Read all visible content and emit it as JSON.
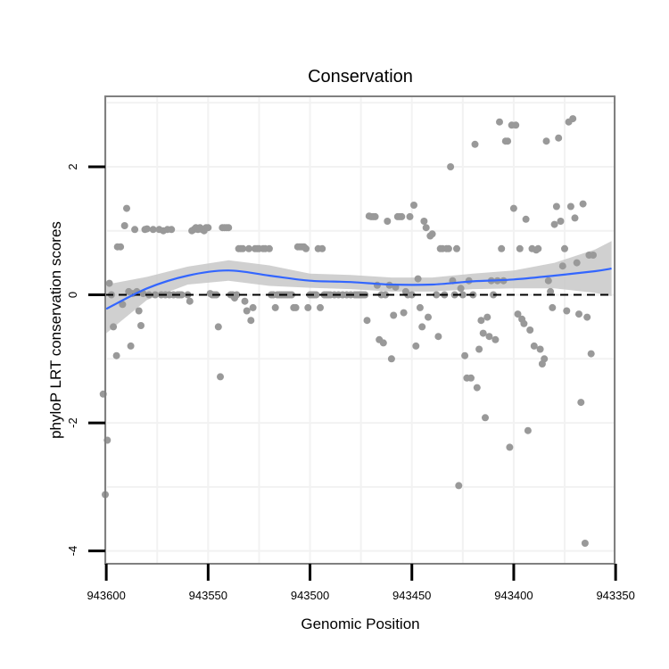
{
  "chart_data": {
    "type": "scatter",
    "title": "Conservation",
    "xlabel": "Genomic Position",
    "ylabel": "phyloP LRT conservation scores",
    "x_reversed": true,
    "xlim": [
      943600.5,
      943350.5
    ],
    "ylim": [
      -4.2,
      3.1
    ],
    "x_ticks": [
      943600,
      943550,
      943500,
      943450,
      943400,
      943350
    ],
    "y_ticks": [
      2,
      0,
      -2,
      -4
    ],
    "grid": true,
    "reference_line": {
      "y": 0,
      "style": "dashed",
      "color": "#000000"
    },
    "colors": {
      "points": "#999999",
      "smooth_line": "#3366ff",
      "confidence_band": "#c8c8c8",
      "panel_border": "#808080",
      "grid": "#f2f2f2"
    },
    "smooth": {
      "x": [
        943600,
        943580,
        943560,
        943540,
        943520,
        943500,
        943480,
        943460,
        943440,
        943420,
        943400,
        943380,
        943360,
        943352
      ],
      "y": [
        -0.22,
        0.1,
        0.3,
        0.38,
        0.3,
        0.22,
        0.2,
        0.16,
        0.16,
        0.21,
        0.24,
        0.3,
        0.37,
        0.41
      ],
      "lower": [
        -0.6,
        -0.08,
        0.16,
        0.22,
        0.14,
        0.11,
        0.09,
        0.05,
        0.05,
        0.09,
        0.1,
        0.1,
        0.03,
        -0.02
      ],
      "upper": [
        0.16,
        0.28,
        0.44,
        0.54,
        0.46,
        0.33,
        0.31,
        0.27,
        0.27,
        0.33,
        0.38,
        0.5,
        0.71,
        0.84
      ]
    },
    "points": [
      {
        "x": 943601.5,
        "y": -1.55
      },
      {
        "x": 943600.5,
        "y": -3.12
      },
      {
        "x": 943599.5,
        "y": -2.27
      },
      {
        "x": 943598.5,
        "y": 0.18
      },
      {
        "x": 943597.5,
        "y": 0.0
      },
      {
        "x": 943596.5,
        "y": -0.5
      },
      {
        "x": 943595.0,
        "y": -0.95
      },
      {
        "x": 943594.5,
        "y": 0.75
      },
      {
        "x": 943593.0,
        "y": 0.75
      },
      {
        "x": 943592.0,
        "y": -0.15
      },
      {
        "x": 943591.0,
        "y": 1.08
      },
      {
        "x": 943590.0,
        "y": 1.35
      },
      {
        "x": 943589.0,
        "y": 0.05
      },
      {
        "x": 943588.0,
        "y": -0.8
      },
      {
        "x": 943587.0,
        "y": 0.02
      },
      {
        "x": 943586.0,
        "y": 1.02
      },
      {
        "x": 943585.0,
        "y": 0.05
      },
      {
        "x": 943584.0,
        "y": -0.25
      },
      {
        "x": 943583.0,
        "y": -0.48
      },
      {
        "x": 943582.0,
        "y": 0.02
      },
      {
        "x": 943581.0,
        "y": 1.02
      },
      {
        "x": 943580.0,
        "y": 1.03
      },
      {
        "x": 943579.0,
        "y": 0.0
      },
      {
        "x": 943577.0,
        "y": 1.02
      },
      {
        "x": 943576.0,
        "y": 0.0
      },
      {
        "x": 943574.0,
        "y": 1.02
      },
      {
        "x": 943573.0,
        "y": 0.0
      },
      {
        "x": 943572.0,
        "y": 1.0
      },
      {
        "x": 943571.0,
        "y": 0.0
      },
      {
        "x": 943570.0,
        "y": 1.02
      },
      {
        "x": 943569.0,
        "y": 0.0
      },
      {
        "x": 943568.0,
        "y": 1.02
      },
      {
        "x": 943567.0,
        "y": 0.0
      },
      {
        "x": 943565.0,
        "y": 0.0
      },
      {
        "x": 943564.0,
        "y": 0.0
      },
      {
        "x": 943563.0,
        "y": 0.0
      },
      {
        "x": 943560.0,
        "y": 0.0
      },
      {
        "x": 943559.0,
        "y": -0.1
      },
      {
        "x": 943558.0,
        "y": 1.0
      },
      {
        "x": 943557.0,
        "y": 1.02
      },
      {
        "x": 943556.0,
        "y": 1.05
      },
      {
        "x": 943555.0,
        "y": 1.02
      },
      {
        "x": 943554.0,
        "y": 1.05
      },
      {
        "x": 943553.0,
        "y": 1.02
      },
      {
        "x": 943552.0,
        "y": 1.0
      },
      {
        "x": 943551.0,
        "y": 1.05
      },
      {
        "x": 943550.0,
        "y": 1.05
      },
      {
        "x": 943549.0,
        "y": 0.02
      },
      {
        "x": 943548.0,
        "y": 0.0
      },
      {
        "x": 943547.0,
        "y": 0.0
      },
      {
        "x": 943546.0,
        "y": 0.0
      },
      {
        "x": 943545.0,
        "y": -0.5
      },
      {
        "x": 943544.0,
        "y": -1.28
      },
      {
        "x": 943543.0,
        "y": 1.05
      },
      {
        "x": 943542.0,
        "y": 1.05
      },
      {
        "x": 943541.0,
        "y": 1.05
      },
      {
        "x": 943540.0,
        "y": 1.05
      },
      {
        "x": 943539.0,
        "y": 0.0
      },
      {
        "x": 943538.0,
        "y": 0.0
      },
      {
        "x": 943537.0,
        "y": -0.05
      },
      {
        "x": 943536.0,
        "y": 0.0
      },
      {
        "x": 943535.0,
        "y": 0.72
      },
      {
        "x": 943534.0,
        "y": 0.72
      },
      {
        "x": 943533.0,
        "y": 0.72
      },
      {
        "x": 943532.0,
        "y": -0.1
      },
      {
        "x": 943531.0,
        "y": -0.25
      },
      {
        "x": 943530.0,
        "y": 0.72
      },
      {
        "x": 943529.0,
        "y": -0.4
      },
      {
        "x": 943528.0,
        "y": -0.2
      },
      {
        "x": 943527.0,
        "y": 0.72
      },
      {
        "x": 943526.0,
        "y": 0.72
      },
      {
        "x": 943525.0,
        "y": 0.72
      },
      {
        "x": 943523.0,
        "y": 0.72
      },
      {
        "x": 943522.0,
        "y": 0.72
      },
      {
        "x": 943520.0,
        "y": 0.72
      },
      {
        "x": 943519.0,
        "y": 0.0
      },
      {
        "x": 943518.0,
        "y": 0.0
      },
      {
        "x": 943517.0,
        "y": -0.2
      },
      {
        "x": 943516.0,
        "y": 0.0
      },
      {
        "x": 943515.0,
        "y": 0.0
      },
      {
        "x": 943514.0,
        "y": 0.0
      },
      {
        "x": 943513.0,
        "y": 0.0
      },
      {
        "x": 943512.0,
        "y": 0.0
      },
      {
        "x": 943511.0,
        "y": 0.0
      },
      {
        "x": 943510.0,
        "y": 0.0
      },
      {
        "x": 943509.0,
        "y": 0.0
      },
      {
        "x": 943508.0,
        "y": -0.2
      },
      {
        "x": 943507.0,
        "y": -0.2
      },
      {
        "x": 943506.0,
        "y": 0.75
      },
      {
        "x": 943505.0,
        "y": 0.75
      },
      {
        "x": 943504.0,
        "y": 0.75
      },
      {
        "x": 943503.0,
        "y": 0.75
      },
      {
        "x": 943502.0,
        "y": 0.72
      },
      {
        "x": 943501.0,
        "y": -0.2
      },
      {
        "x": 943500.0,
        "y": 0.0
      },
      {
        "x": 943499.0,
        "y": 0.0
      },
      {
        "x": 943498.0,
        "y": 0.0
      },
      {
        "x": 943497.0,
        "y": 0.0
      },
      {
        "x": 943496.0,
        "y": 0.72
      },
      {
        "x": 943495.0,
        "y": -0.2
      },
      {
        "x": 943494.0,
        "y": 0.72
      },
      {
        "x": 943493.0,
        "y": 0.0
      },
      {
        "x": 943492.0,
        "y": 0.0
      },
      {
        "x": 943491.0,
        "y": 0.0
      },
      {
        "x": 943490.0,
        "y": 0.0
      },
      {
        "x": 943488.0,
        "y": 0.0
      },
      {
        "x": 943486.0,
        "y": 0.0
      },
      {
        "x": 943484.0,
        "y": 0.0
      },
      {
        "x": 943482.0,
        "y": 0.0
      },
      {
        "x": 943480.0,
        "y": 0.0
      },
      {
        "x": 943478.0,
        "y": 0.0
      },
      {
        "x": 943477.0,
        "y": 0.0
      },
      {
        "x": 943476.0,
        "y": 0.0
      },
      {
        "x": 943475.0,
        "y": 0.0
      },
      {
        "x": 943474.0,
        "y": 0.0
      },
      {
        "x": 943473.0,
        "y": 0.0
      },
      {
        "x": 943472.0,
        "y": -0.4
      },
      {
        "x": 943471.0,
        "y": 1.23
      },
      {
        "x": 943470.0,
        "y": 1.22
      },
      {
        "x": 943469.0,
        "y": 1.22
      },
      {
        "x": 943468.0,
        "y": 1.22
      },
      {
        "x": 943467.0,
        "y": 0.15
      },
      {
        "x": 943466.0,
        "y": -0.7
      },
      {
        "x": 943465.0,
        "y": 0.0
      },
      {
        "x": 943464.0,
        "y": -0.75
      },
      {
        "x": 943463.0,
        "y": 0.0
      },
      {
        "x": 943462.0,
        "y": 1.15
      },
      {
        "x": 943461.0,
        "y": 0.15
      },
      {
        "x": 943460.0,
        "y": -1.0
      },
      {
        "x": 943459.0,
        "y": -0.32
      },
      {
        "x": 943458.0,
        "y": 0.12
      },
      {
        "x": 943457.0,
        "y": 1.22
      },
      {
        "x": 943456.0,
        "y": 1.22
      },
      {
        "x": 943455.0,
        "y": 1.22
      },
      {
        "x": 943454.0,
        "y": -0.28
      },
      {
        "x": 943453.0,
        "y": 0.05
      },
      {
        "x": 943452.0,
        "y": 0.0
      },
      {
        "x": 943451.0,
        "y": 1.22
      },
      {
        "x": 943450.0,
        "y": 0.0
      },
      {
        "x": 943449.0,
        "y": 1.4
      },
      {
        "x": 943448.0,
        "y": -0.8
      },
      {
        "x": 943447.0,
        "y": 0.25
      },
      {
        "x": 943446.0,
        "y": -0.2
      },
      {
        "x": 943445.0,
        "y": -0.5
      },
      {
        "x": 943444.0,
        "y": 1.15
      },
      {
        "x": 943443.0,
        "y": 1.05
      },
      {
        "x": 943442.0,
        "y": -0.35
      },
      {
        "x": 943441.0,
        "y": 0.92
      },
      {
        "x": 943440.0,
        "y": 0.95
      },
      {
        "x": 943438.0,
        "y": 0.0
      },
      {
        "x": 943437.0,
        "y": -0.65
      },
      {
        "x": 943436.0,
        "y": 0.72
      },
      {
        "x": 943435.0,
        "y": 0.72
      },
      {
        "x": 943434.0,
        "y": 0.0
      },
      {
        "x": 943433.0,
        "y": 0.72
      },
      {
        "x": 943432.0,
        "y": 0.72
      },
      {
        "x": 943431.0,
        "y": 2.0
      },
      {
        "x": 943430.0,
        "y": 0.22
      },
      {
        "x": 943429.0,
        "y": 0.0
      },
      {
        "x": 943428.0,
        "y": 0.72
      },
      {
        "x": 943427.0,
        "y": -2.98
      },
      {
        "x": 943426.0,
        "y": 0.1
      },
      {
        "x": 943425.0,
        "y": 0.0
      },
      {
        "x": 943424.0,
        "y": -0.95
      },
      {
        "x": 943423.0,
        "y": -1.3
      },
      {
        "x": 943422.0,
        "y": 0.22
      },
      {
        "x": 943421.0,
        "y": -1.3
      },
      {
        "x": 943420.0,
        "y": 0.0
      },
      {
        "x": 943419.0,
        "y": 2.35
      },
      {
        "x": 943418.0,
        "y": -1.45
      },
      {
        "x": 943417.0,
        "y": -0.85
      },
      {
        "x": 943416.0,
        "y": -0.4
      },
      {
        "x": 943415.0,
        "y": -0.6
      },
      {
        "x": 943414.0,
        "y": -1.92
      },
      {
        "x": 943413.0,
        "y": -0.35
      },
      {
        "x": 943412.0,
        "y": -0.65
      },
      {
        "x": 943411.0,
        "y": 0.22
      },
      {
        "x": 943410.0,
        "y": 0.0
      },
      {
        "x": 943409.0,
        "y": -0.7
      },
      {
        "x": 943408.0,
        "y": 0.22
      },
      {
        "x": 943407.0,
        "y": 2.7
      },
      {
        "x": 943406.0,
        "y": 0.72
      },
      {
        "x": 943405.0,
        "y": 0.22
      },
      {
        "x": 943404.0,
        "y": 2.4
      },
      {
        "x": 943403.0,
        "y": 2.4
      },
      {
        "x": 943402.0,
        "y": -2.38
      },
      {
        "x": 943401.0,
        "y": 2.65
      },
      {
        "x": 943400.0,
        "y": 1.35
      },
      {
        "x": 943399.0,
        "y": 2.65
      },
      {
        "x": 943398.0,
        "y": -0.3
      },
      {
        "x": 943397.0,
        "y": 0.72
      },
      {
        "x": 943396.0,
        "y": -0.38
      },
      {
        "x": 943395.0,
        "y": -0.45
      },
      {
        "x": 943394.0,
        "y": 1.18
      },
      {
        "x": 943393.0,
        "y": -2.12
      },
      {
        "x": 943392.0,
        "y": -0.55
      },
      {
        "x": 943391.0,
        "y": 0.72
      },
      {
        "x": 943390.0,
        "y": -0.8
      },
      {
        "x": 943389.0,
        "y": 0.7
      },
      {
        "x": 943388.0,
        "y": 0.72
      },
      {
        "x": 943387.0,
        "y": -0.85
      },
      {
        "x": 943386.0,
        "y": -1.08
      },
      {
        "x": 943385.0,
        "y": -1.0
      },
      {
        "x": 943384.0,
        "y": 2.4
      },
      {
        "x": 943383.0,
        "y": 0.22
      },
      {
        "x": 943382.0,
        "y": 0.05
      },
      {
        "x": 943381.0,
        "y": -0.2
      },
      {
        "x": 943380.0,
        "y": 1.1
      },
      {
        "x": 943379.0,
        "y": 1.38
      },
      {
        "x": 943378.0,
        "y": 2.45
      },
      {
        "x": 943377.0,
        "y": 1.15
      },
      {
        "x": 943376.0,
        "y": 0.45
      },
      {
        "x": 943375.0,
        "y": 0.72
      },
      {
        "x": 943374.0,
        "y": -0.25
      },
      {
        "x": 943373.0,
        "y": 2.7
      },
      {
        "x": 943372.0,
        "y": 1.38
      },
      {
        "x": 943371.0,
        "y": 2.75
      },
      {
        "x": 943370.0,
        "y": 1.2
      },
      {
        "x": 943369.0,
        "y": 0.5
      },
      {
        "x": 943368.0,
        "y": -0.3
      },
      {
        "x": 943367.0,
        "y": -1.68
      },
      {
        "x": 943366.0,
        "y": 1.42
      },
      {
        "x": 943365.0,
        "y": -3.88
      },
      {
        "x": 943364.0,
        "y": -0.35
      },
      {
        "x": 943363.0,
        "y": 0.62
      },
      {
        "x": 943362.0,
        "y": -0.92
      },
      {
        "x": 943361.0,
        "y": 0.62
      }
    ]
  }
}
